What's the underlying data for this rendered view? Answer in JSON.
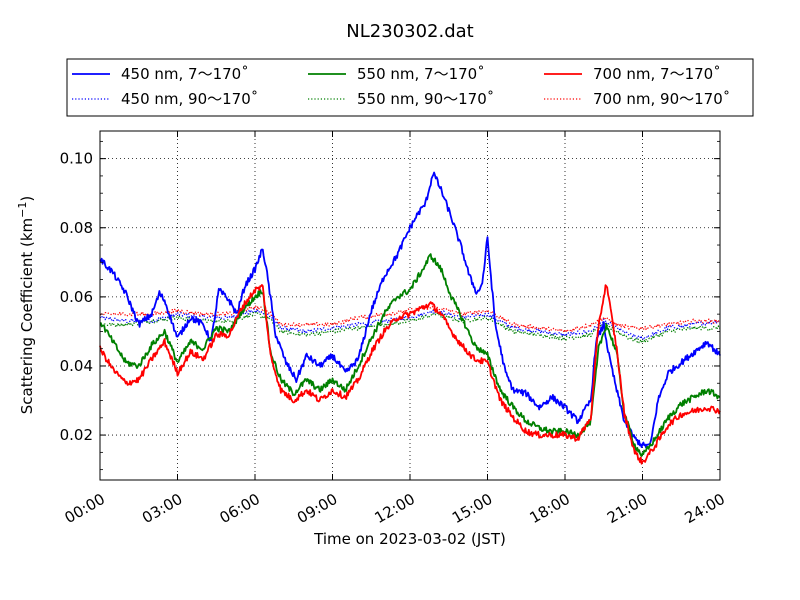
{
  "chart_data": {
    "type": "line",
    "title": "NL230302.dat",
    "xlabel": "Time on 2023-03-02 (JST)",
    "ylabel": "Scattering Coefficient (km",
    "ylabel_sup": "−1",
    "ylabel_end": ")",
    "xlim": [
      0,
      24
    ],
    "ylim": [
      0.007,
      0.108
    ],
    "x_ticks": [
      {
        "value": 0,
        "label": "00:00"
      },
      {
        "value": 3,
        "label": "03:00"
      },
      {
        "value": 6,
        "label": "06:00"
      },
      {
        "value": 9,
        "label": "09:00"
      },
      {
        "value": 12,
        "label": "12:00"
      },
      {
        "value": 15,
        "label": "15:00"
      },
      {
        "value": 18,
        "label": "18:00"
      },
      {
        "value": 21,
        "label": "21:00"
      },
      {
        "value": 24,
        "label": "24:00"
      }
    ],
    "y_ticks": [
      {
        "value": 0.02,
        "label": "0.02"
      },
      {
        "value": 0.04,
        "label": "0.04"
      },
      {
        "value": 0.06,
        "label": "0.06"
      },
      {
        "value": 0.08,
        "label": "0.08"
      },
      {
        "value": 0.1,
        "label": "0.10"
      }
    ],
    "grid": true,
    "legend_position": "top",
    "series": [
      {
        "name": "450 nm, 7～170˚",
        "color": "#0000ff",
        "style": "solid",
        "x": [
          0,
          0.5,
          1,
          1.5,
          2,
          2.3,
          2.5,
          3,
          3.5,
          4,
          4.3,
          4.6,
          5,
          5.3,
          5.6,
          6,
          6.3,
          6.5,
          6.8,
          7.2,
          7.6,
          8,
          8.5,
          9,
          9.5,
          10,
          10.5,
          11,
          11.5,
          12,
          12.3,
          12.6,
          12.9,
          13.2,
          13.6,
          14,
          14.3,
          14.6,
          14.8,
          15,
          15.3,
          15.7,
          16,
          16.5,
          17,
          17.5,
          18,
          18.5,
          19,
          19.2,
          19.5,
          19.7,
          20,
          20.3,
          20.7,
          21,
          21.3,
          21.6,
          22,
          22.5,
          23,
          23.5,
          24
        ],
        "y": [
          0.071,
          0.067,
          0.061,
          0.052,
          0.055,
          0.061,
          0.059,
          0.048,
          0.054,
          0.052,
          0.047,
          0.062,
          0.059,
          0.055,
          0.063,
          0.068,
          0.074,
          0.065,
          0.049,
          0.041,
          0.036,
          0.043,
          0.04,
          0.043,
          0.038,
          0.042,
          0.056,
          0.066,
          0.072,
          0.08,
          0.084,
          0.087,
          0.096,
          0.091,
          0.083,
          0.074,
          0.066,
          0.061,
          0.064,
          0.077,
          0.052,
          0.038,
          0.033,
          0.032,
          0.028,
          0.031,
          0.028,
          0.024,
          0.03,
          0.047,
          0.052,
          0.043,
          0.033,
          0.024,
          0.019,
          0.017,
          0.017,
          0.03,
          0.038,
          0.041,
          0.044,
          0.047,
          0.043
        ]
      },
      {
        "name": "550 nm, 7～170˚",
        "color": "#008000",
        "style": "solid",
        "x": [
          0,
          0.5,
          1,
          1.5,
          2,
          2.5,
          3,
          3.5,
          4,
          4.5,
          5,
          5.5,
          6,
          6.3,
          6.6,
          7,
          7.5,
          8,
          8.5,
          9,
          9.5,
          10,
          10.5,
          11,
          11.5,
          12,
          12.5,
          12.8,
          13.2,
          13.6,
          14,
          14.5,
          15,
          15.5,
          16,
          16.5,
          17,
          17.5,
          18,
          18.5,
          19,
          19.3,
          19.6,
          20,
          20.3,
          20.7,
          21,
          21.5,
          22,
          22.5,
          23,
          23.5,
          24
        ],
        "y": [
          0.053,
          0.047,
          0.041,
          0.04,
          0.046,
          0.05,
          0.041,
          0.047,
          0.045,
          0.051,
          0.05,
          0.056,
          0.06,
          0.062,
          0.044,
          0.036,
          0.032,
          0.036,
          0.033,
          0.036,
          0.033,
          0.04,
          0.048,
          0.055,
          0.06,
          0.062,
          0.068,
          0.072,
          0.068,
          0.06,
          0.054,
          0.046,
          0.043,
          0.033,
          0.028,
          0.024,
          0.022,
          0.021,
          0.021,
          0.02,
          0.024,
          0.045,
          0.052,
          0.044,
          0.026,
          0.017,
          0.014,
          0.019,
          0.025,
          0.029,
          0.031,
          0.033,
          0.031
        ]
      },
      {
        "name": "700 nm, 7～170˚",
        "color": "#ff0000",
        "style": "solid",
        "x": [
          0,
          0.5,
          1,
          1.5,
          2,
          2.5,
          3,
          3.5,
          4,
          4.5,
          5,
          5.5,
          6,
          6.3,
          6.6,
          7,
          7.5,
          8,
          8.5,
          9,
          9.5,
          10,
          10.5,
          11,
          11.5,
          12,
          12.5,
          12.8,
          13.2,
          13.6,
          14,
          14.5,
          15,
          15.5,
          16,
          16.5,
          17,
          17.5,
          18,
          18.5,
          19,
          19.3,
          19.6,
          20,
          20.3,
          20.7,
          21,
          21.5,
          22,
          22.5,
          23,
          23.5,
          24
        ],
        "y": [
          0.045,
          0.039,
          0.035,
          0.036,
          0.042,
          0.047,
          0.038,
          0.044,
          0.042,
          0.049,
          0.049,
          0.057,
          0.062,
          0.063,
          0.043,
          0.033,
          0.03,
          0.033,
          0.03,
          0.033,
          0.031,
          0.036,
          0.044,
          0.05,
          0.054,
          0.055,
          0.057,
          0.058,
          0.055,
          0.05,
          0.046,
          0.042,
          0.041,
          0.03,
          0.025,
          0.021,
          0.02,
          0.02,
          0.02,
          0.019,
          0.025,
          0.052,
          0.064,
          0.045,
          0.026,
          0.015,
          0.012,
          0.017,
          0.023,
          0.026,
          0.027,
          0.028,
          0.027
        ]
      },
      {
        "name": "450 nm, 90～170˚",
        "color": "#0000ff",
        "style": "dotted",
        "x": [
          0,
          1,
          2,
          3,
          4,
          5,
          6,
          6.5,
          7,
          8,
          9,
          10,
          11,
          12,
          13,
          14,
          15,
          16,
          17,
          18,
          19,
          19.5,
          20,
          20.5,
          21,
          22,
          23,
          24
        ],
        "y": [
          0.054,
          0.053,
          0.053,
          0.055,
          0.054,
          0.054,
          0.056,
          0.055,
          0.051,
          0.05,
          0.051,
          0.052,
          0.053,
          0.054,
          0.056,
          0.054,
          0.055,
          0.051,
          0.05,
          0.049,
          0.05,
          0.053,
          0.051,
          0.049,
          0.048,
          0.051,
          0.052,
          0.053
        ]
      },
      {
        "name": "550 nm, 90～170˚",
        "color": "#008000",
        "style": "dotted",
        "x": [
          0,
          1,
          2,
          3,
          4,
          5,
          6,
          6.5,
          7,
          8,
          9,
          10,
          11,
          12,
          13,
          14,
          15,
          16,
          17,
          18,
          19,
          19.5,
          20,
          20.5,
          21,
          22,
          23,
          24
        ],
        "y": [
          0.052,
          0.052,
          0.053,
          0.054,
          0.053,
          0.053,
          0.055,
          0.054,
          0.05,
          0.049,
          0.05,
          0.051,
          0.052,
          0.053,
          0.055,
          0.053,
          0.054,
          0.05,
          0.049,
          0.048,
          0.049,
          0.052,
          0.05,
          0.048,
          0.047,
          0.05,
          0.051,
          0.051
        ]
      },
      {
        "name": "700 nm, 90～170˚",
        "color": "#ff0000",
        "style": "dotted",
        "x": [
          0,
          1,
          2,
          3,
          4,
          5,
          6,
          6.5,
          7,
          8,
          9,
          10,
          11,
          12,
          13,
          14,
          15,
          16,
          17,
          18,
          19,
          19.5,
          20,
          20.5,
          21,
          22,
          23,
          24
        ],
        "y": [
          0.055,
          0.055,
          0.055,
          0.056,
          0.055,
          0.055,
          0.057,
          0.056,
          0.052,
          0.052,
          0.052,
          0.054,
          0.055,
          0.056,
          0.057,
          0.055,
          0.056,
          0.052,
          0.051,
          0.05,
          0.052,
          0.054,
          0.052,
          0.051,
          0.051,
          0.052,
          0.053,
          0.053
        ]
      }
    ]
  }
}
